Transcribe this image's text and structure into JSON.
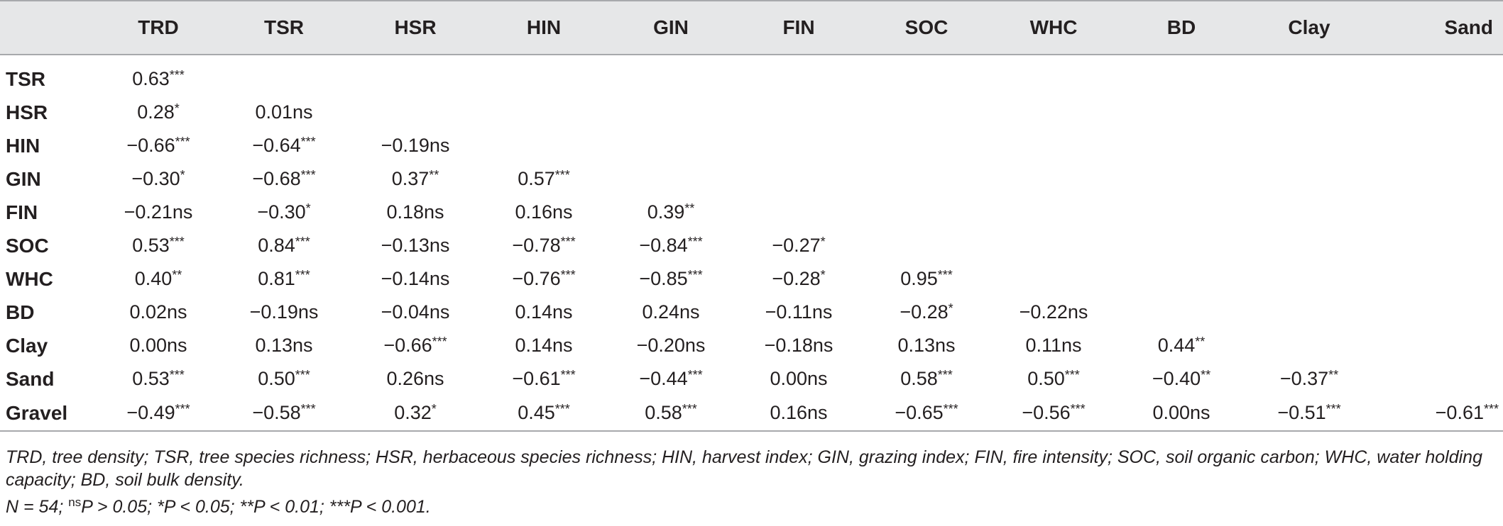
{
  "table": {
    "columns": [
      "TRD",
      "TSR",
      "HSR",
      "HIN",
      "GIN",
      "FIN",
      "SOC",
      "WHC",
      "BD",
      "Clay",
      "Sand"
    ],
    "rows": [
      {
        "label": "TSR",
        "cells": [
          [
            "0.63",
            "***"
          ],
          [
            "",
            ""
          ],
          [
            "",
            ""
          ],
          [
            "",
            ""
          ],
          [
            "",
            ""
          ],
          [
            "",
            ""
          ],
          [
            "",
            ""
          ],
          [
            "",
            ""
          ],
          [
            "",
            ""
          ],
          [
            "",
            ""
          ],
          [
            "",
            ""
          ]
        ]
      },
      {
        "label": "HSR",
        "cells": [
          [
            "0.28",
            "*"
          ],
          [
            "0.01ns",
            ""
          ],
          [
            "",
            ""
          ],
          [
            "",
            ""
          ],
          [
            "",
            ""
          ],
          [
            "",
            ""
          ],
          [
            "",
            ""
          ],
          [
            "",
            ""
          ],
          [
            "",
            ""
          ],
          [
            "",
            ""
          ],
          [
            "",
            ""
          ]
        ]
      },
      {
        "label": "HIN",
        "cells": [
          [
            "−0.66",
            "***"
          ],
          [
            "−0.64",
            "***"
          ],
          [
            "−0.19ns",
            ""
          ],
          [
            "",
            ""
          ],
          [
            "",
            ""
          ],
          [
            "",
            ""
          ],
          [
            "",
            ""
          ],
          [
            "",
            ""
          ],
          [
            "",
            ""
          ],
          [
            "",
            ""
          ],
          [
            "",
            ""
          ]
        ]
      },
      {
        "label": "GIN",
        "cells": [
          [
            "−0.30",
            "*"
          ],
          [
            "−0.68",
            "***"
          ],
          [
            "0.37",
            "**"
          ],
          [
            "0.57",
            "***"
          ],
          [
            "",
            ""
          ],
          [
            "",
            ""
          ],
          [
            "",
            ""
          ],
          [
            "",
            ""
          ],
          [
            "",
            ""
          ],
          [
            "",
            ""
          ],
          [
            "",
            ""
          ]
        ]
      },
      {
        "label": "FIN",
        "cells": [
          [
            "−0.21ns",
            ""
          ],
          [
            "−0.30",
            "*"
          ],
          [
            "0.18ns",
            ""
          ],
          [
            "0.16ns",
            ""
          ],
          [
            "0.39",
            "**"
          ],
          [
            "",
            ""
          ],
          [
            "",
            ""
          ],
          [
            "",
            ""
          ],
          [
            "",
            ""
          ],
          [
            "",
            ""
          ],
          [
            "",
            ""
          ]
        ]
      },
      {
        "label": "SOC",
        "cells": [
          [
            "0.53",
            "***"
          ],
          [
            "0.84",
            "***"
          ],
          [
            "−0.13ns",
            ""
          ],
          [
            "−0.78",
            "***"
          ],
          [
            "−0.84",
            "***"
          ],
          [
            "−0.27",
            "*"
          ],
          [
            "",
            ""
          ],
          [
            "",
            ""
          ],
          [
            "",
            ""
          ],
          [
            "",
            ""
          ],
          [
            "",
            ""
          ]
        ]
      },
      {
        "label": "WHC",
        "cells": [
          [
            "0.40",
            "**"
          ],
          [
            "0.81",
            "***"
          ],
          [
            "−0.14ns",
            ""
          ],
          [
            "−0.76",
            "***"
          ],
          [
            "−0.85",
            "***"
          ],
          [
            "−0.28",
            "*"
          ],
          [
            "0.95",
            "***"
          ],
          [
            "",
            ""
          ],
          [
            "",
            ""
          ],
          [
            "",
            ""
          ],
          [
            "",
            ""
          ]
        ]
      },
      {
        "label": "BD",
        "cells": [
          [
            "0.02ns",
            ""
          ],
          [
            "−0.19ns",
            ""
          ],
          [
            "−0.04ns",
            ""
          ],
          [
            "0.14ns",
            ""
          ],
          [
            "0.24ns",
            ""
          ],
          [
            "−0.11ns",
            ""
          ],
          [
            "−0.28",
            "*"
          ],
          [
            "−0.22ns",
            ""
          ],
          [
            "",
            ""
          ],
          [
            "",
            ""
          ],
          [
            "",
            ""
          ]
        ]
      },
      {
        "label": "Clay",
        "cells": [
          [
            "0.00ns",
            ""
          ],
          [
            "0.13ns",
            ""
          ],
          [
            "−0.66",
            "***"
          ],
          [
            "0.14ns",
            ""
          ],
          [
            "−0.20ns",
            ""
          ],
          [
            "−0.18ns",
            ""
          ],
          [
            "0.13ns",
            ""
          ],
          [
            "0.11ns",
            ""
          ],
          [
            "0.44",
            "**"
          ],
          [
            "",
            ""
          ],
          [
            "",
            ""
          ]
        ]
      },
      {
        "label": "Sand",
        "cells": [
          [
            "0.53",
            "***"
          ],
          [
            "0.50",
            "***"
          ],
          [
            "0.26ns",
            ""
          ],
          [
            "−0.61",
            "***"
          ],
          [
            "−0.44",
            "***"
          ],
          [
            "0.00ns",
            ""
          ],
          [
            "0.58",
            "***"
          ],
          [
            "0.50",
            "***"
          ],
          [
            "−0.40",
            "**"
          ],
          [
            "−0.37",
            "**"
          ],
          [
            "",
            ""
          ]
        ]
      },
      {
        "label": "Gravel",
        "cells": [
          [
            "−0.49",
            "***"
          ],
          [
            "−0.58",
            "***"
          ],
          [
            "0.32",
            "*"
          ],
          [
            "0.45",
            "***"
          ],
          [
            "0.58",
            "***"
          ],
          [
            "0.16ns",
            ""
          ],
          [
            "−0.65",
            "***"
          ],
          [
            "−0.56",
            "***"
          ],
          [
            "0.00ns",
            ""
          ],
          [
            "−0.51",
            "***"
          ],
          [
            "−0.61",
            "***"
          ]
        ]
      }
    ]
  },
  "footnotes": {
    "abbreviations": "TRD, tree density; TSR, tree species richness; HSR, herbaceous species richness; HIN, harvest index; GIN, grazing index; FIN, fire intensity; SOC, soil organic carbon; WHC, water holding capacity; BD, soil bulk density.",
    "n_text": "N = 54; ",
    "ns_sup": "ns",
    "ns_rest": "P > 0.05; *P < 0.05; **P < 0.01; ***P < 0.001."
  }
}
